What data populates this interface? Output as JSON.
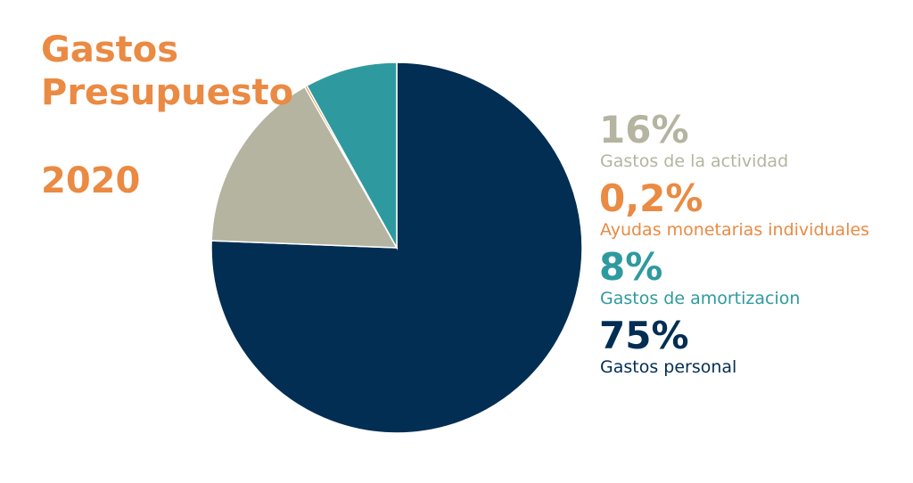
{
  "chart_data": {
    "type": "pie",
    "title": "Gastos Presupuesto",
    "subtitle": "2020",
    "categories": [
      "Gastos de la actividad",
      "Ayudas monetarias individuales",
      "Gastos de amortizacion",
      "Gastos personal"
    ],
    "values": [
      16,
      0.2,
      8,
      75
    ],
    "value_labels": [
      "16%",
      "0,2%",
      "8%",
      "75%"
    ],
    "colors": [
      "#b5b4a1",
      "#ea8a43",
      "#2e9a9f",
      "#022e53"
    ]
  }
}
